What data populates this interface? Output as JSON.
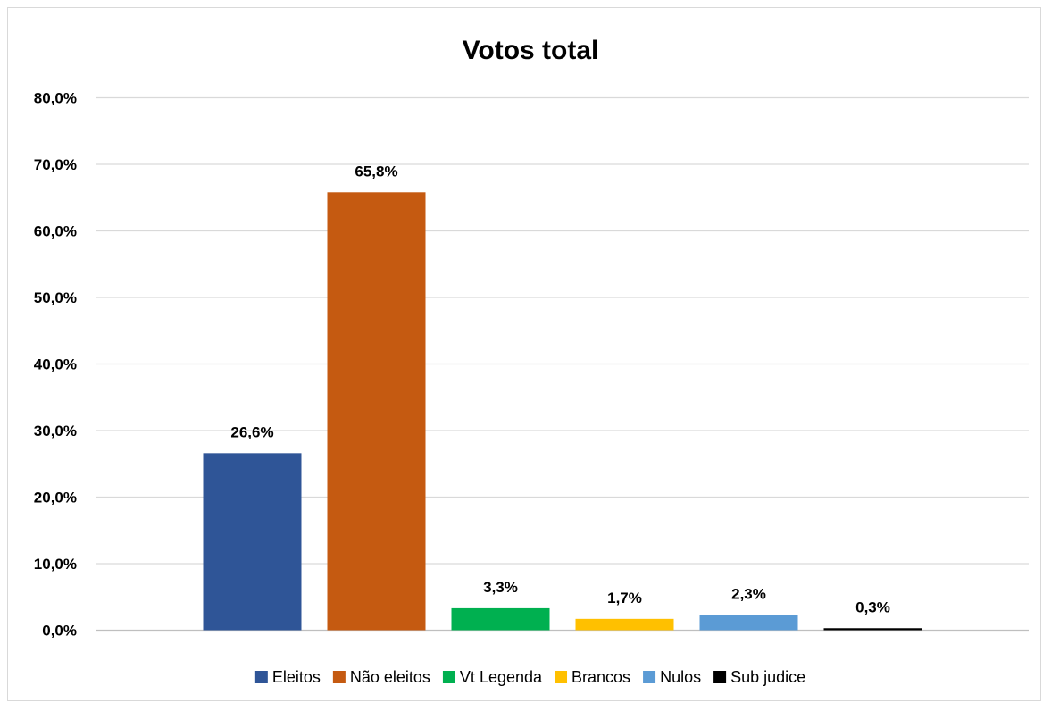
{
  "chart_data": {
    "type": "bar",
    "title": "Votos total",
    "xlabel": "",
    "ylabel": "",
    "ylim": [
      0,
      80
    ],
    "y_ticks": [
      "0,0%",
      "10,0%",
      "20,0%",
      "30,0%",
      "40,0%",
      "50,0%",
      "60,0%",
      "70,0%",
      "80,0%"
    ],
    "y_tick_values": [
      0,
      10,
      20,
      30,
      40,
      50,
      60,
      70,
      80
    ],
    "grid": true,
    "legend_position": "bottom",
    "series": [
      {
        "name": "Eleitos",
        "value": 26.6,
        "label": "26,6%",
        "color": "#2F5597"
      },
      {
        "name": "Não eleitos",
        "value": 65.8,
        "label": "65,8%",
        "color": "#C55A11"
      },
      {
        "name": "Vt Legenda",
        "value": 3.3,
        "label": "3,3%",
        "color": "#00B050"
      },
      {
        "name": "Brancos",
        "value": 1.7,
        "label": "1,7%",
        "color": "#FFC000"
      },
      {
        "name": "Nulos",
        "value": 2.3,
        "label": "2,3%",
        "color": "#5B9BD5"
      },
      {
        "name": "Sub judice",
        "value": 0.3,
        "label": "0,3%",
        "color": "#000000"
      }
    ]
  }
}
